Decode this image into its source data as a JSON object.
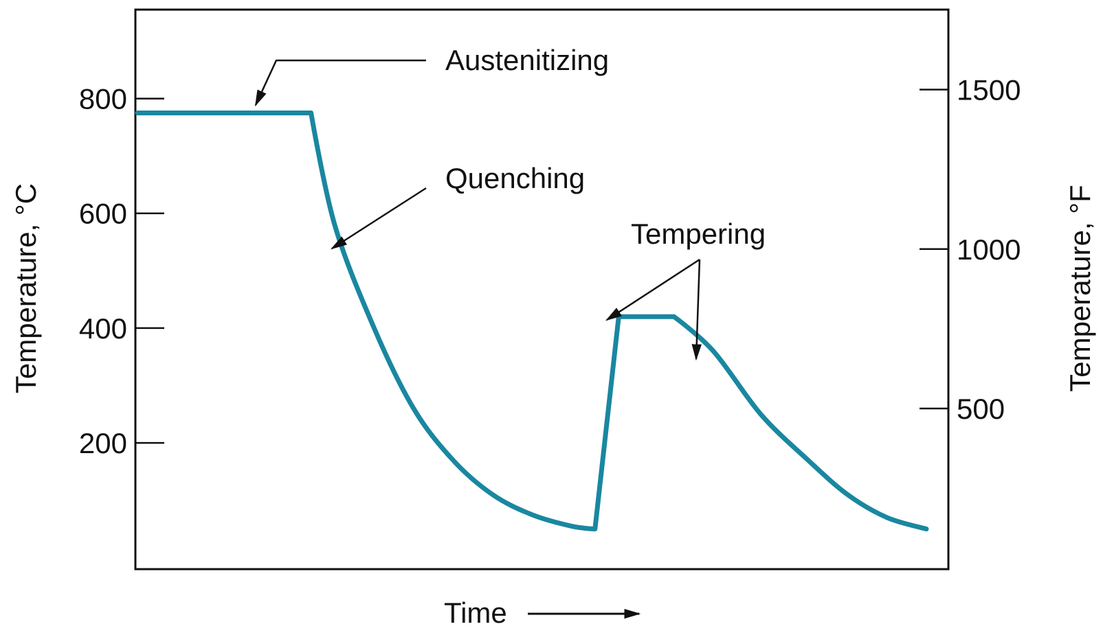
{
  "chart_data": {
    "type": "line",
    "title": "",
    "xlabel": "Time",
    "ylabel_left": "Temperature, °C",
    "ylabel_right": "Temperature, °F",
    "y_left_ticks": [
      800,
      600,
      400,
      200
    ],
    "y_right_ticks": [
      1500,
      1000,
      500
    ],
    "y_left_range": [
      -20,
      955
    ],
    "grid": false,
    "x_ticks_shown": false,
    "line_color": "#1a87a0",
    "series": [
      {
        "values_x": [
          0,
          22,
          25,
          30,
          35,
          40,
          45,
          50,
          55,
          58,
          61,
          65,
          68,
          73,
          79,
          85,
          90,
          95,
          100
        ],
        "values_y": [
          775,
          775,
          580,
          400,
          260,
          170,
          110,
          75,
          55,
          50,
          420,
          420,
          420,
          360,
          250,
          170,
          110,
          70,
          50
        ]
      }
    ],
    "annotations": [
      {
        "text": "Austenitizing",
        "points_to": "holding stage at ~775 °C"
      },
      {
        "text": "Quenching",
        "points_to": "rapid cooling curve"
      },
      {
        "text": "Tempering",
        "points_to": "holding stage at ~420 °C and subsequent cooling"
      }
    ]
  }
}
